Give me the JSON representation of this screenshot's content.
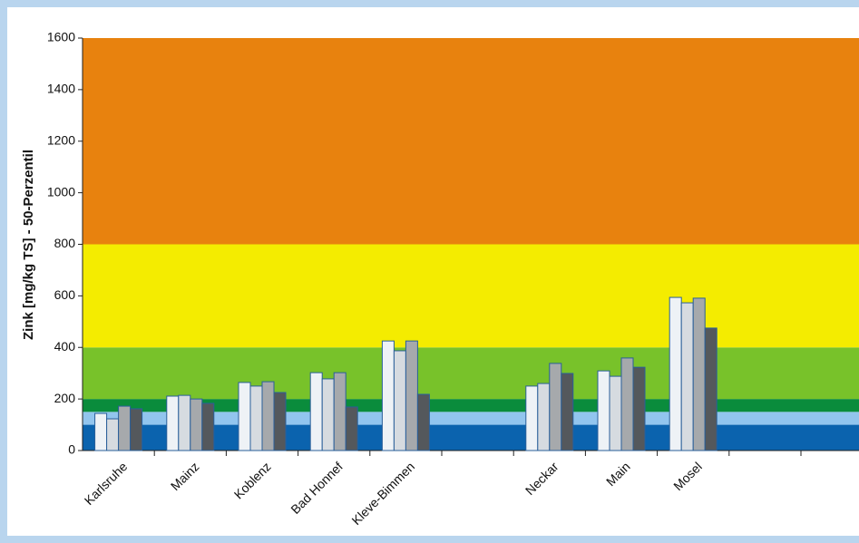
{
  "chart_data": {
    "type": "bar",
    "y_label": "Zink [mg/kg TS] - 50-Perzentil",
    "categories": [
      "Karlsruhe",
      "Mainz",
      "Koblenz",
      "Bad Honnef",
      "Kleve-Bimmen",
      null,
      "Neckar",
      "Main",
      "Mosel",
      null
    ],
    "series": [
      {
        "color": "#eef2f6",
        "values": [
          144,
          211,
          264,
          302,
          425,
          null,
          250,
          309,
          594,
          null
        ]
      },
      {
        "color": "#d6dbe0",
        "values": [
          123,
          214,
          250,
          278,
          387,
          null,
          260,
          288,
          573,
          null
        ]
      },
      {
        "color": "#a6a9ac",
        "values": [
          172,
          200,
          267,
          302,
          425,
          null,
          338,
          359,
          591,
          null
        ]
      },
      {
        "color": "#54585c",
        "values": [
          162,
          183,
          225,
          169,
          218,
          null,
          299,
          323,
          475,
          null
        ]
      }
    ],
    "bands": [
      {
        "from": 0,
        "to": 100,
        "color": "#0b63ae"
      },
      {
        "from": 100,
        "to": 150,
        "color": "#92c5ee"
      },
      {
        "from": 150,
        "to": 200,
        "color": "#0a8c3c"
      },
      {
        "from": 200,
        "to": 400,
        "color": "#78c22a"
      },
      {
        "from": 400,
        "to": 800,
        "color": "#f4ec00"
      },
      {
        "from": 800,
        "to": 1600,
        "color": "#e8820e"
      }
    ],
    "ylim": [
      0,
      1600
    ],
    "yticks": [
      0,
      200,
      400,
      600,
      800,
      1000,
      1200,
      1400,
      1600
    ]
  }
}
